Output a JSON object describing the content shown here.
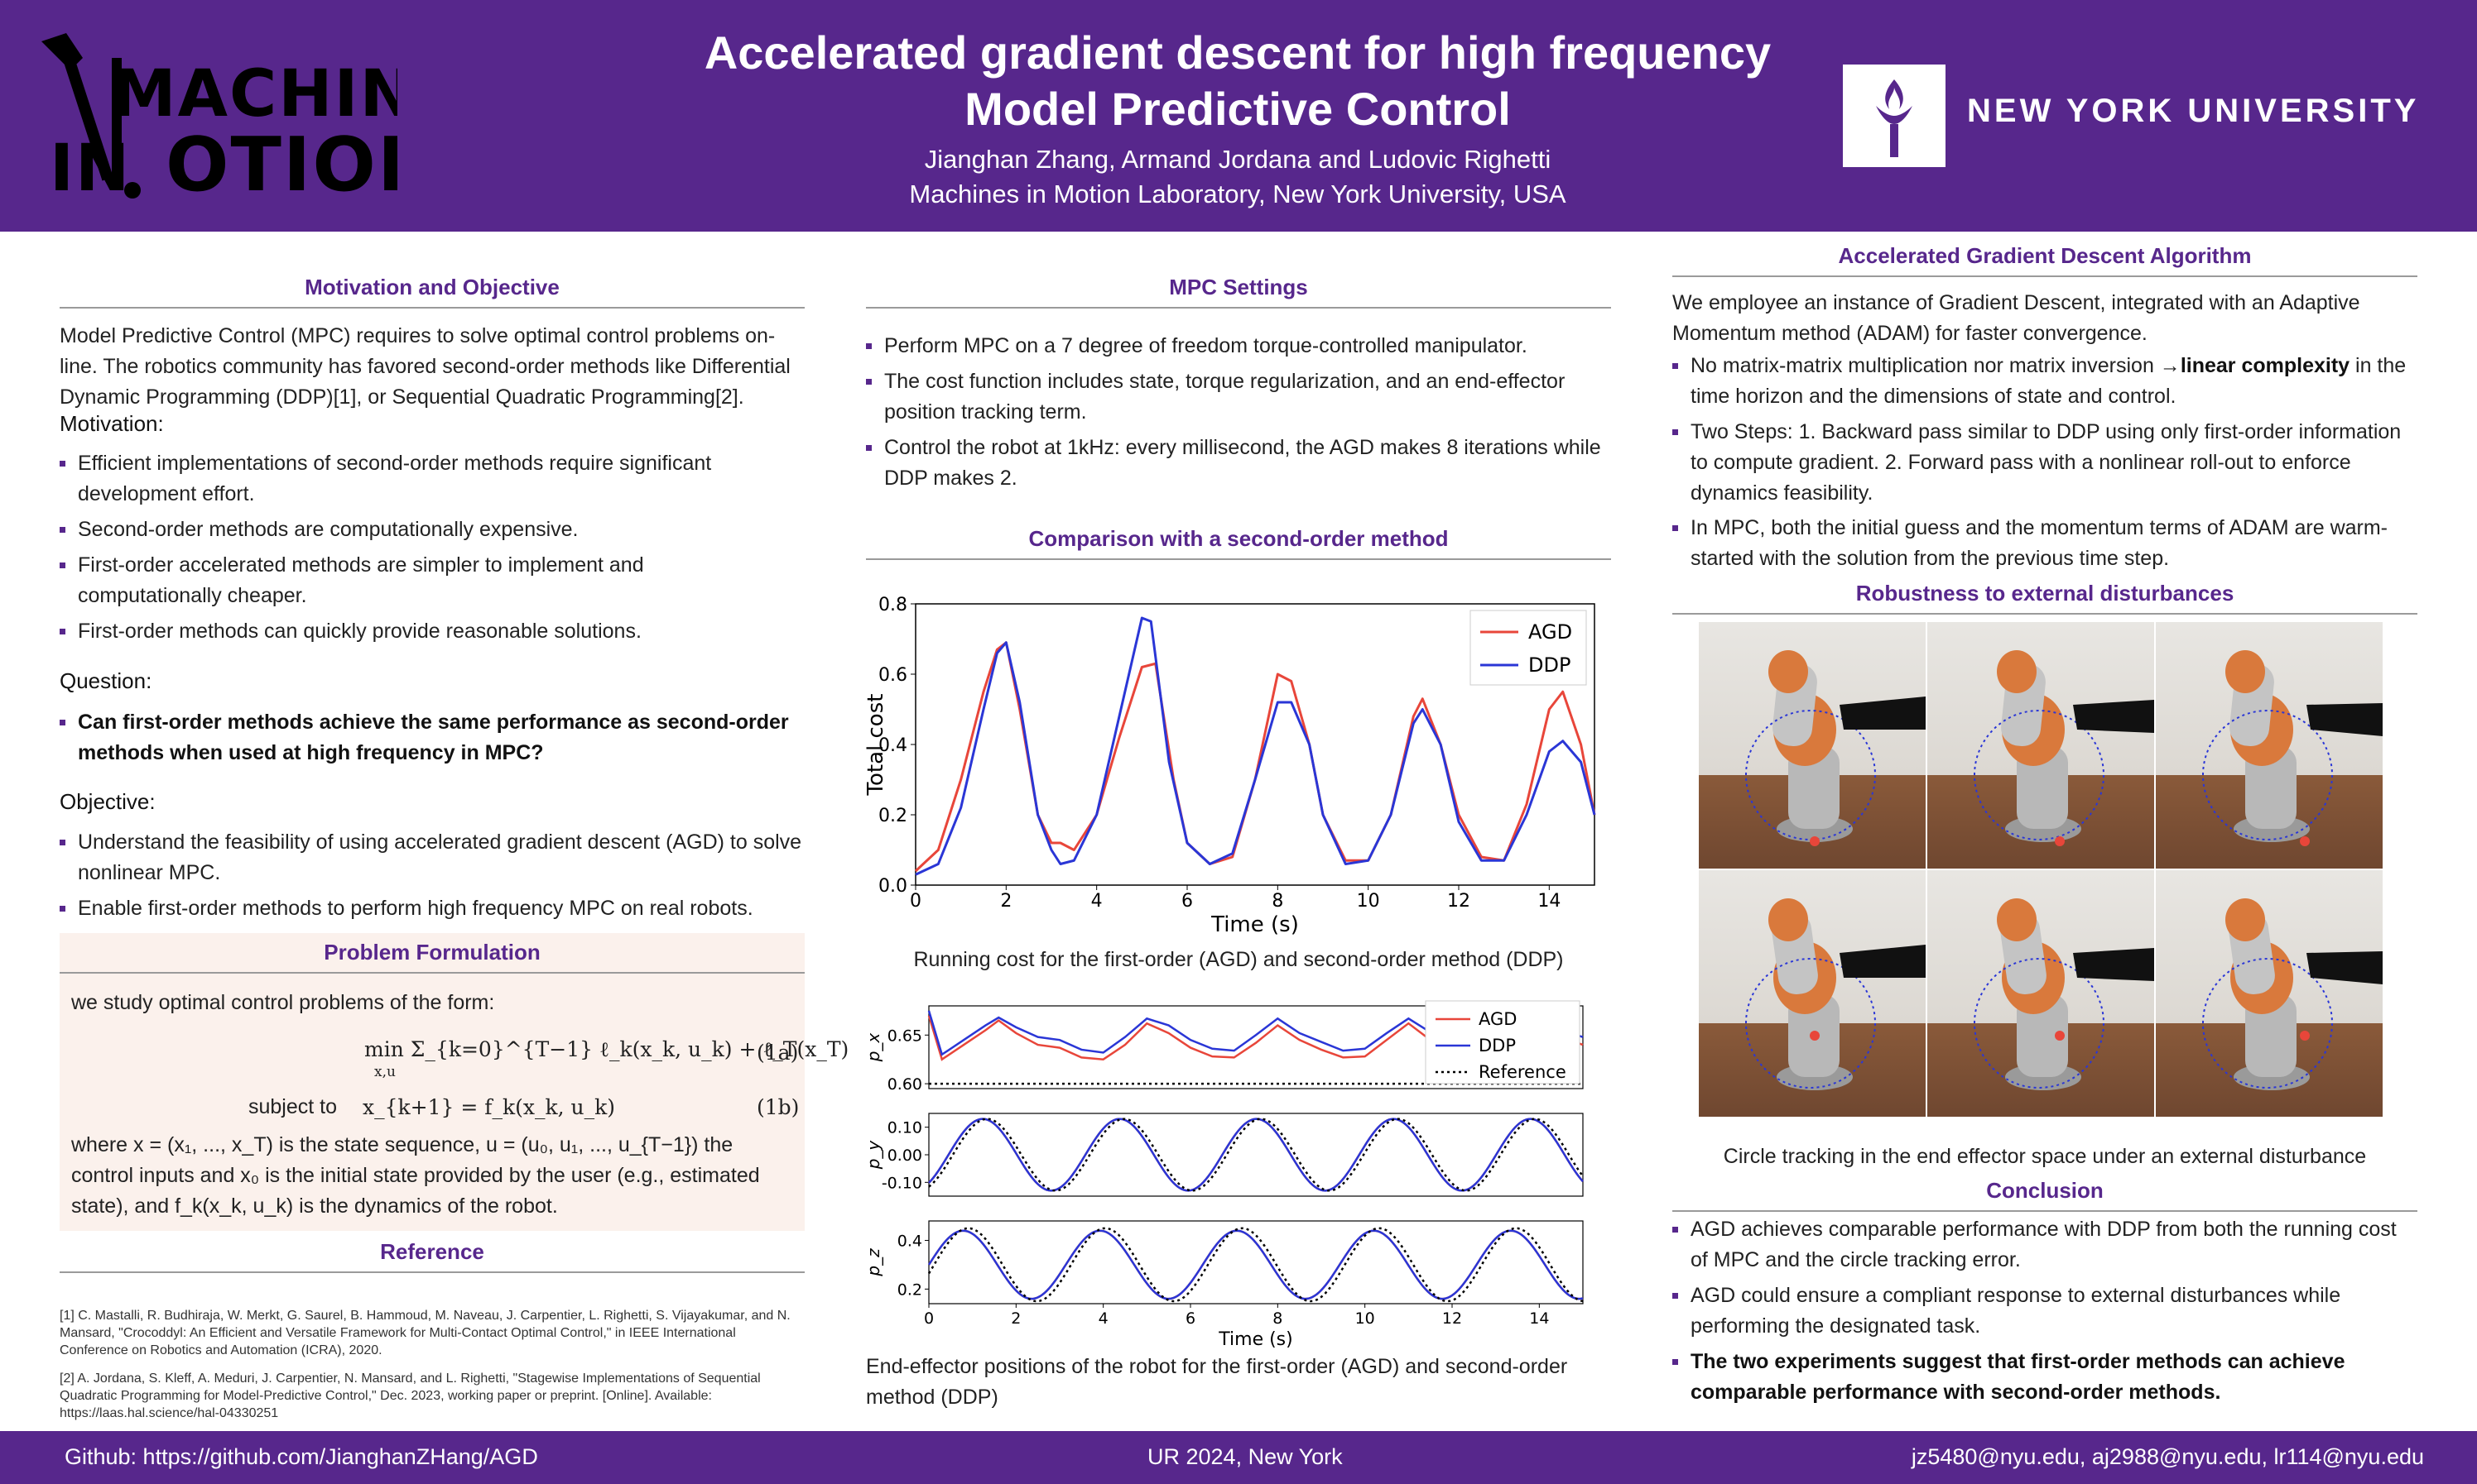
{
  "header": {
    "logo_text": "MACHINES IN MOTION",
    "title_line1": "Accelerated gradient descent for high frequency",
    "title_line2": "Model Predictive Control",
    "authors": "Jianghan Zhang, Armand Jordana and Ludovic Righetti",
    "affiliation": "Machines in Motion Laboratory, New York University, USA",
    "university": "NEW YORK UNIVERSITY"
  },
  "motivation": {
    "heading": "Motivation and Objective",
    "intro": "Model Predictive Control (MPC) requires to solve optimal control problems on-line. The robotics community has favored second-order methods like Differential Dynamic Programming (DDP)[1], or Sequential Quadratic Programming[2].",
    "motivation_label": "Motivation:",
    "motivation_items": [
      "Efficient implementations of second-order methods require significant development effort.",
      "Second-order methods are computationally expensive.",
      "First-order accelerated methods are simpler to implement and computationally cheaper.",
      "First-order methods can quickly provide reasonable solutions."
    ],
    "question_label": "Question:",
    "question_item": "Can first-order methods achieve the same performance as second-order methods when used at high frequency in MPC?",
    "objective_label": "Objective:",
    "objective_items": [
      "Understand the feasibility of using accelerated gradient descent (AGD) to solve nonlinear MPC.",
      "Enable first-order methods to perform high frequency MPC on real robots."
    ]
  },
  "problem": {
    "heading": "Problem Formulation",
    "intro": "we study optimal control problems of the form:",
    "eq1": "min  Σ_{k=0}^{T−1} ℓ_k(x_k, u_k) + ℓ_T(x_T)",
    "eq1_under": "x,u",
    "eq1_tag": "(1a)",
    "subject_to": "subject to",
    "eq2": "x_{k+1} = f_k(x_k, u_k)",
    "eq2_tag": "(1b)",
    "where": "where x = (x₁, ..., x_T) is the state sequence, u = (u₀, u₁, ..., u_{T−1}) the control inputs and x₀ is the initial state provided by the user (e.g., estimated state), and f_k(x_k, u_k) is the dynamics of the robot."
  },
  "reference": {
    "heading": "Reference",
    "items": [
      "[1]  C. Mastalli, R. Budhiraja, W. Merkt, G. Saurel, B. Hammoud, M. Naveau, J. Carpentier, L. Righetti, S. Vijayakumar, and N. Mansard, \"Crocoddyl: An Efficient and Versatile Framework for Multi-Contact Optimal Control,\" in IEEE International Conference on Robotics and Automation (ICRA), 2020.",
      "[2]  A. Jordana, S. Kleff, A. Meduri, J. Carpentier, N. Mansard, and L. Righetti, \"Stagewise Implementations of Sequential Quadratic Programming for Model-Predictive Control,\" Dec. 2023, working paper or preprint. [Online]. Available: https://laas.hal.science/hal-04330251"
    ]
  },
  "mpc": {
    "heading": "MPC Settings",
    "items": [
      "Perform MPC on a 7 degree of freedom torque-controlled manipulator.",
      "The cost function includes state, torque regularization, and an end-effector position tracking term.",
      "Control the robot at 1kHz: every millisecond, the AGD makes 8 iterations while DDP makes 2."
    ]
  },
  "comparison": {
    "heading": "Comparison with a second-order method",
    "caption1": "Running cost for the first-order (AGD) and second-order method (DDP)",
    "caption2": "End-effector positions of the robot for the first-order (AGD) and second-order method (DDP)"
  },
  "agd": {
    "heading": "Accelerated Gradient Descent Algorithm",
    "intro": "We employee an instance of Gradient Descent, integrated with an Adaptive Momentum method (ADAM) for faster convergence.",
    "item1_pre": "No matrix-matrix multiplication nor matrix inversion  →",
    "item1_bold": "linear complexity",
    "item1_post": " in the time horizon and the dimensions of state and control.",
    "item2": "Two Steps: 1. Backward pass similar to DDP using only first-order information to compute gradient. 2. Forward pass with a nonlinear roll-out to enforce dynamics feasibility.",
    "item3": "In MPC, both the initial guess and the momentum terms of ADAM are warm-started with the solution from the previous time step."
  },
  "robustness": {
    "heading": "Robustness to external disturbances",
    "caption": "Circle tracking in the end effector space under an external disturbance"
  },
  "conclusion": {
    "heading": "Conclusion",
    "items": [
      "AGD achieves comparable performance with DDP from both the running cost of MPC and the circle tracking error.",
      "AGD could ensure a compliant response to external disturbances while performing the designated task."
    ],
    "final": "The two experiments suggest that first-order methods can achieve comparable performance with second-order methods."
  },
  "footer": {
    "github": "Github: https://github.com/JianghanZHang/AGD",
    "venue": "UR 2024, New York",
    "emails": "jz5480@nyu.edu, aj2988@nyu.edu, lr114@nyu.edu"
  },
  "colors": {
    "purple": "#57278c",
    "agd": "#e8463a",
    "ddp": "#2a36d6"
  },
  "chart_data": [
    {
      "type": "line",
      "xlabel": "Time (s)",
      "ylabel": "Total cost",
      "xlim": [
        0,
        15
      ],
      "ylim": [
        0,
        0.8
      ],
      "xticks": [
        0,
        2,
        4,
        6,
        8,
        10,
        12,
        14
      ],
      "yticks": [
        0.0,
        0.2,
        0.4,
        0.6,
        0.8
      ],
      "legend": "top-right",
      "series": [
        {
          "name": "AGD",
          "x": [
            0,
            0.5,
            1,
            1.5,
            1.8,
            2,
            2.3,
            2.7,
            3,
            3.2,
            3.5,
            4,
            4.5,
            5,
            5.3,
            5.7,
            6,
            6.5,
            7,
            7.5,
            8,
            8.3,
            8.7,
            9,
            9.5,
            10,
            10.5,
            11,
            11.2,
            11.6,
            12,
            12.5,
            13,
            13.5,
            14,
            14.3,
            14.7,
            15
          ],
          "y": [
            0.04,
            0.1,
            0.3,
            0.55,
            0.67,
            0.69,
            0.5,
            0.2,
            0.12,
            0.12,
            0.1,
            0.2,
            0.42,
            0.62,
            0.63,
            0.3,
            0.12,
            0.06,
            0.08,
            0.3,
            0.6,
            0.58,
            0.4,
            0.2,
            0.07,
            0.07,
            0.2,
            0.48,
            0.53,
            0.4,
            0.2,
            0.08,
            0.07,
            0.23,
            0.5,
            0.55,
            0.4,
            0.2
          ]
        },
        {
          "name": "DDP",
          "x": [
            0,
            0.5,
            1,
            1.5,
            1.8,
            2,
            2.3,
            2.7,
            3,
            3.2,
            3.5,
            4,
            4.5,
            5,
            5.2,
            5.6,
            6,
            6.5,
            7,
            7.5,
            8,
            8.3,
            8.7,
            9,
            9.5,
            10,
            10.5,
            11,
            11.2,
            11.6,
            12,
            12.5,
            13,
            13.5,
            14,
            14.3,
            14.7,
            15
          ],
          "y": [
            0.03,
            0.06,
            0.22,
            0.5,
            0.66,
            0.69,
            0.52,
            0.2,
            0.1,
            0.06,
            0.07,
            0.2,
            0.48,
            0.76,
            0.75,
            0.35,
            0.12,
            0.06,
            0.09,
            0.3,
            0.52,
            0.52,
            0.4,
            0.2,
            0.06,
            0.07,
            0.2,
            0.46,
            0.5,
            0.4,
            0.18,
            0.07,
            0.07,
            0.2,
            0.38,
            0.41,
            0.35,
            0.2
          ]
        }
      ]
    },
    {
      "type": "line",
      "ylabel": "p_x",
      "xlim": [
        0,
        15
      ],
      "ylim": [
        0.595,
        0.68
      ],
      "yticks": [
        0.6,
        0.65
      ],
      "legend": "top-right",
      "series": [
        {
          "name": "AGD",
          "x": [
            0,
            0.3,
            0.8,
            1.3,
            1.6,
            2,
            2.5,
            3,
            3.5,
            4,
            4.5,
            5,
            5.5,
            6,
            6.5,
            7,
            7.5,
            8,
            8.5,
            9,
            9.5,
            10,
            10.5,
            11,
            11.5,
            12,
            12.5,
            13,
            13.5,
            14,
            14.5,
            15
          ],
          "y": [
            0.67,
            0.625,
            0.64,
            0.655,
            0.665,
            0.652,
            0.64,
            0.637,
            0.627,
            0.625,
            0.64,
            0.662,
            0.652,
            0.637,
            0.628,
            0.627,
            0.642,
            0.66,
            0.645,
            0.635,
            0.627,
            0.628,
            0.645,
            0.662,
            0.645,
            0.635,
            0.628,
            0.628,
            0.645,
            0.662,
            0.648,
            0.64
          ]
        },
        {
          "name": "DDP",
          "x": [
            0,
            0.3,
            0.8,
            1.3,
            1.6,
            2,
            2.5,
            3,
            3.5,
            4,
            4.5,
            5,
            5.5,
            6,
            6.5,
            7,
            7.5,
            8,
            8.5,
            9,
            9.5,
            10,
            10.5,
            11,
            11.5,
            12,
            12.5,
            13,
            13.5,
            14,
            14.5,
            15
          ],
          "y": [
            0.675,
            0.63,
            0.645,
            0.66,
            0.668,
            0.658,
            0.648,
            0.645,
            0.635,
            0.632,
            0.648,
            0.667,
            0.66,
            0.645,
            0.636,
            0.634,
            0.65,
            0.667,
            0.652,
            0.643,
            0.634,
            0.636,
            0.652,
            0.667,
            0.653,
            0.642,
            0.635,
            0.635,
            0.652,
            0.667,
            0.655,
            0.648
          ]
        },
        {
          "name": "Reference",
          "x": [
            0,
            15
          ],
          "y": [
            0.6,
            0.6
          ]
        }
      ]
    },
    {
      "type": "line",
      "ylabel": "p_y",
      "xlim": [
        0,
        15
      ],
      "ylim": [
        -0.15,
        0.15
      ],
      "yticks": [
        -0.1,
        0.0,
        0.1
      ],
      "series": [
        {
          "name": "AGD",
          "x": "sin period 3.14, amplitude 0.13",
          "period": 3.14,
          "amplitude": 0.13,
          "phase": 0.45
        },
        {
          "name": "DDP",
          "period": 3.14,
          "amplitude": 0.13,
          "phase": 0.45
        },
        {
          "name": "Reference",
          "period": 3.14,
          "amplitude": 0.13,
          "phase": 0.55
        }
      ]
    },
    {
      "type": "line",
      "ylabel": "p_z",
      "xlabel": "Time (s)",
      "xlim": [
        0,
        15
      ],
      "ylim": [
        0.14,
        0.48
      ],
      "xticks": [
        0,
        2,
        4,
        6,
        8,
        10,
        12,
        14
      ],
      "yticks": [
        0.2,
        0.4
      ],
      "series": [
        {
          "name": "AGD",
          "period": 3.14,
          "center": 0.3,
          "amplitude": 0.14,
          "phase": 0.0
        },
        {
          "name": "DDP",
          "period": 3.14,
          "center": 0.3,
          "amplitude": 0.14,
          "phase": 0.0
        },
        {
          "name": "Reference",
          "period": 3.14,
          "center": 0.3,
          "amplitude": 0.15,
          "phase": 0.12
        }
      ]
    }
  ]
}
